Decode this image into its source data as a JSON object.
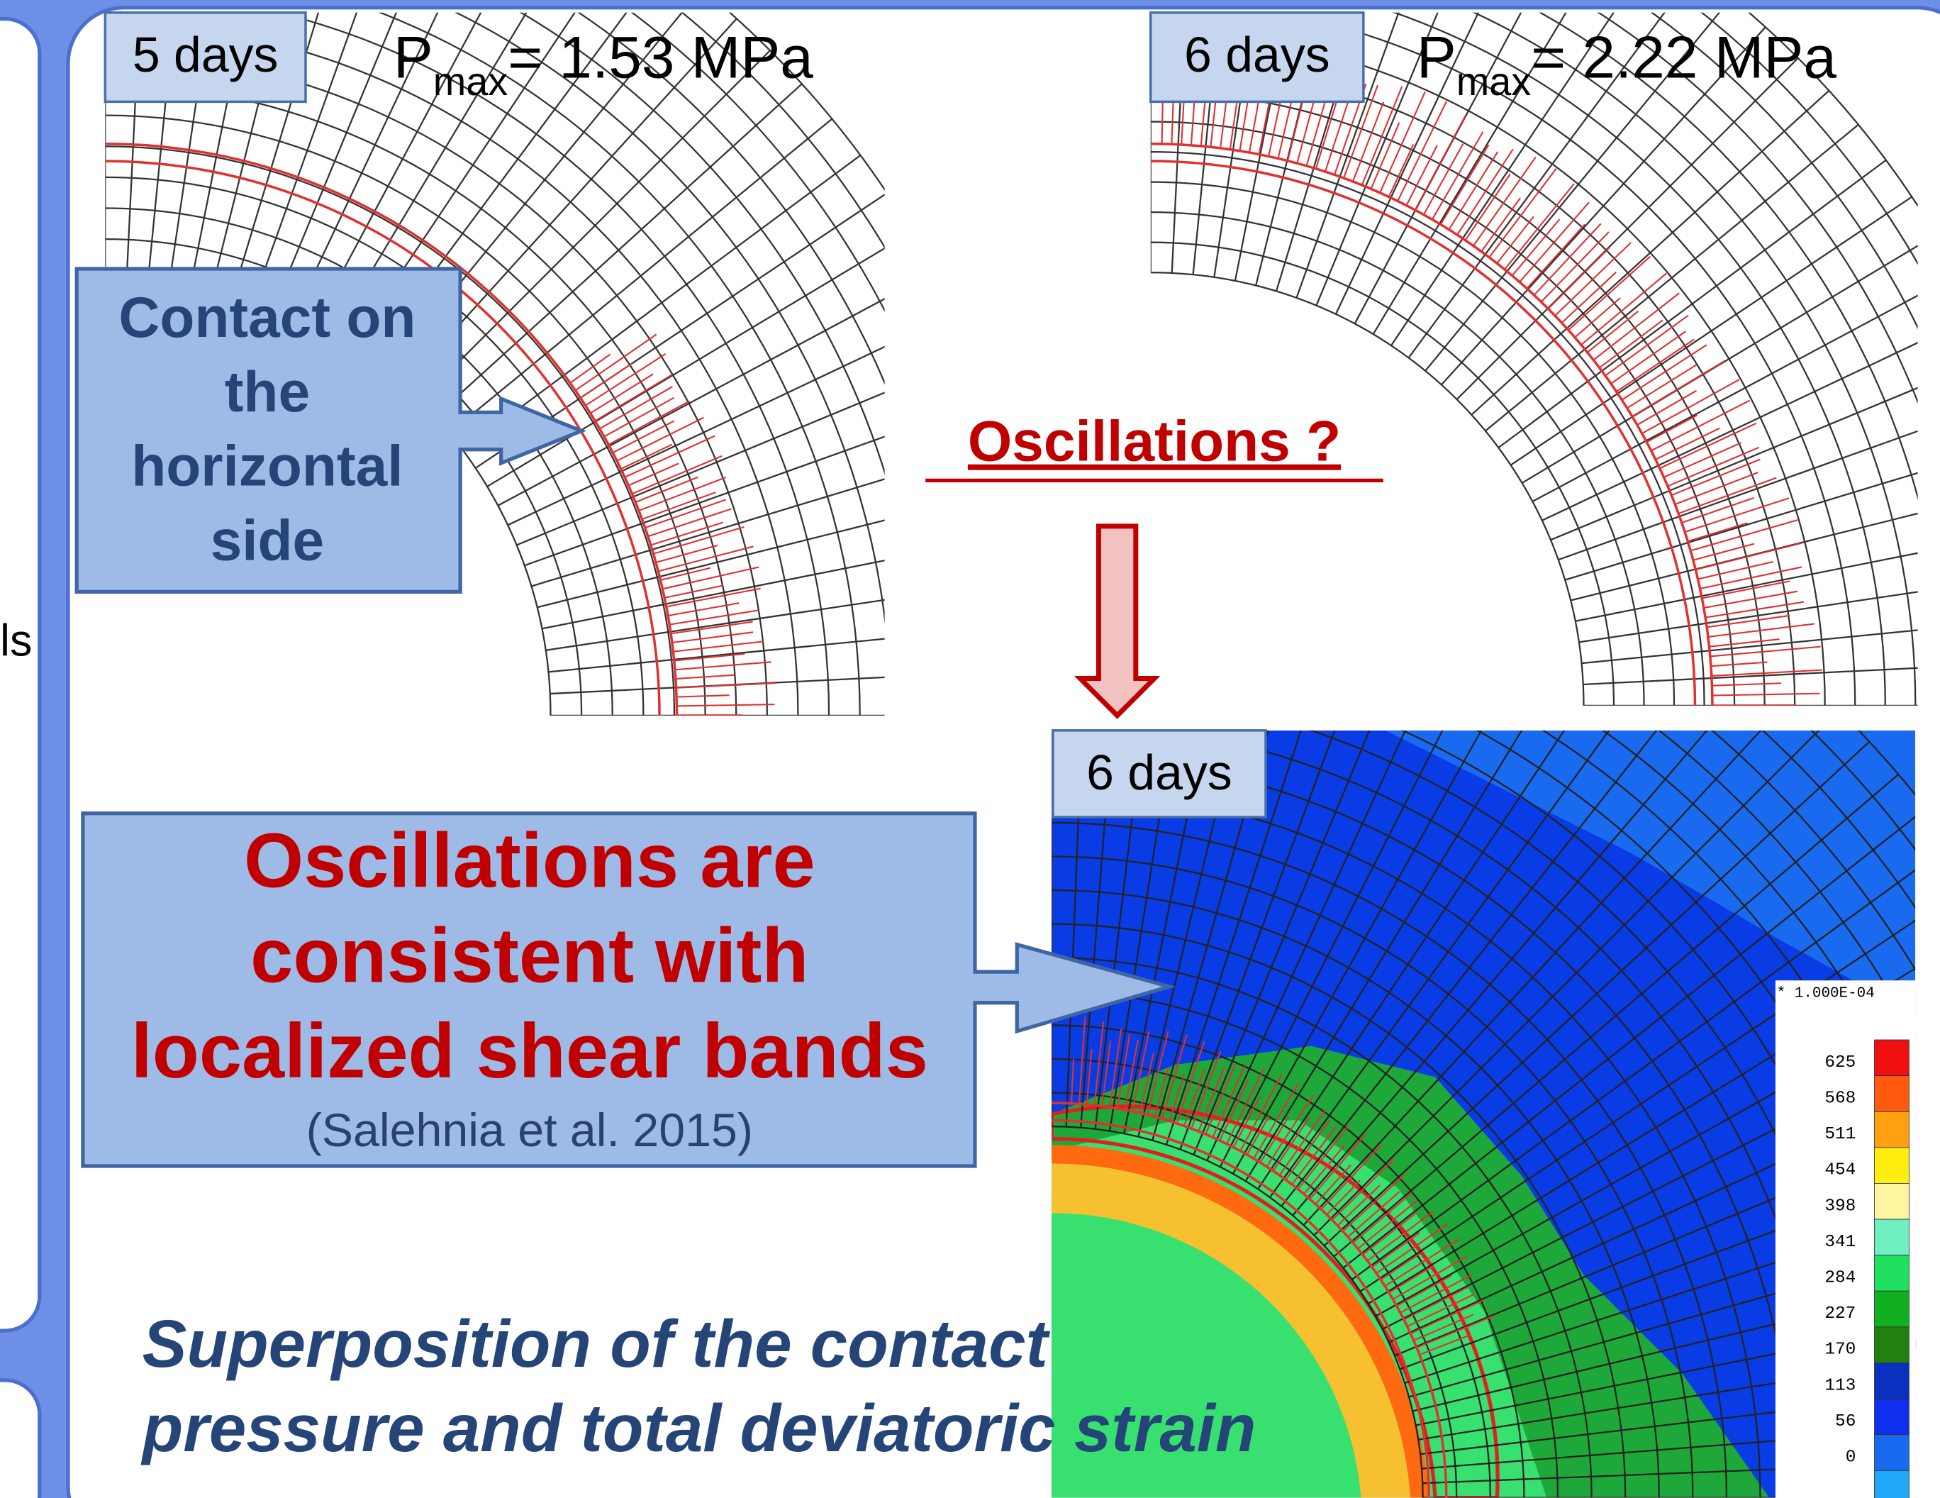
{
  "left_fragment": "ls",
  "panel_5_days": {
    "label": "5 days",
    "p": "P",
    "sub": "max",
    "value": "= 1.53 MPa"
  },
  "panel_6_days": {
    "label": "6 days",
    "p": "P",
    "sub": "max",
    "value": "= 2.22 MPa"
  },
  "callout_contact": {
    "lines": [
      "Contact on",
      "the",
      "horizontal",
      "side"
    ]
  },
  "oscillations_question": "Oscillations ?",
  "contour_panel": {
    "label": "6 days",
    "scale": "* 1.000E-04",
    "levels": [
      "625",
      "568",
      "511",
      "454",
      "398",
      "341",
      "284",
      "227",
      "170",
      "113",
      "56",
      "0"
    ]
  },
  "conclusion": {
    "lines": [
      "Oscillations are",
      "consistent with",
      "localized shear bands"
    ],
    "citation": "(Salehnia et al. 2015)"
  },
  "caption": {
    "lines": [
      "Superposition of the contact",
      "pressure and total deviatoric strain"
    ]
  }
}
